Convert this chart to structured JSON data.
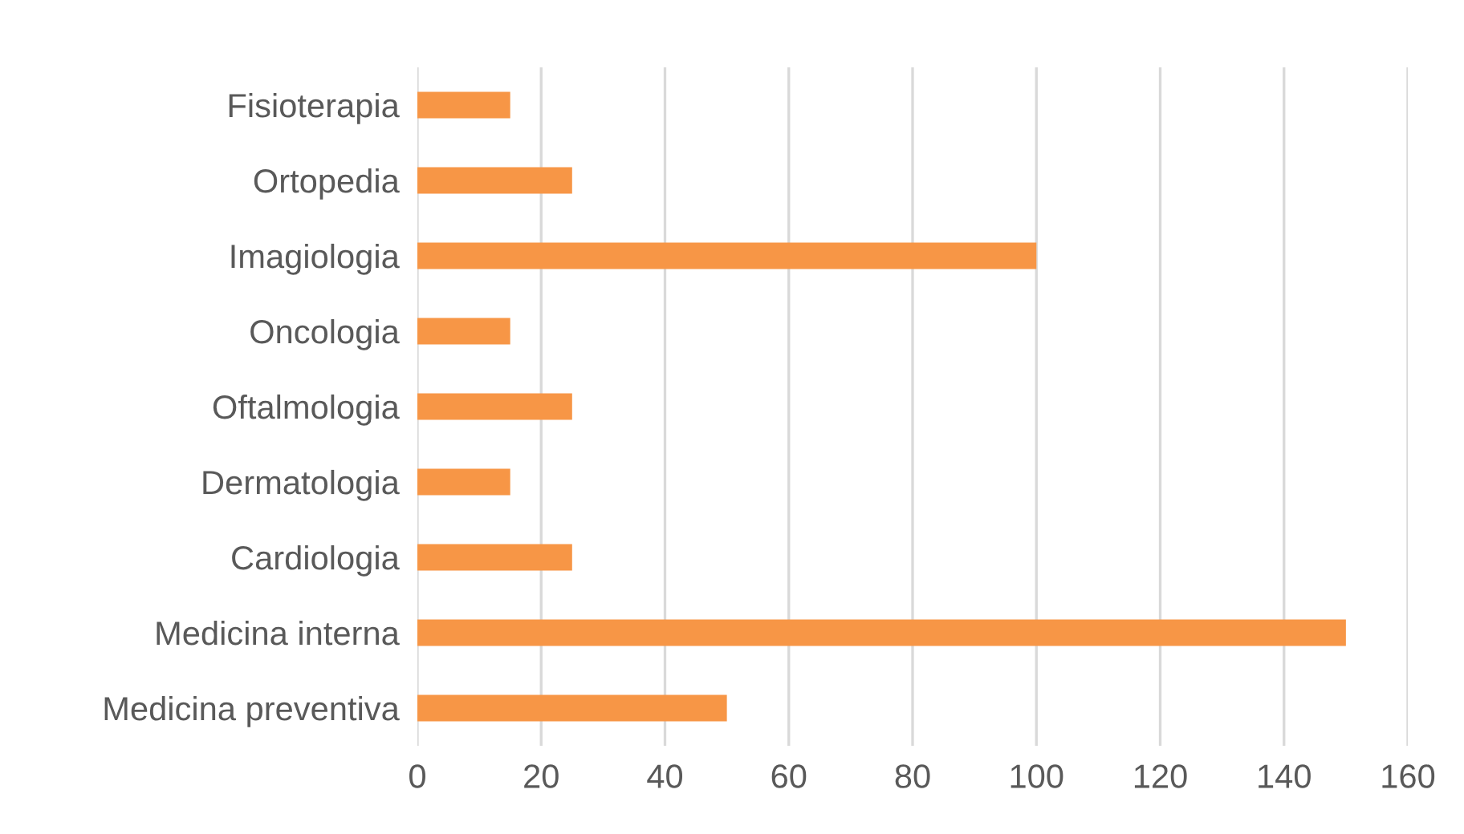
{
  "chart_data": {
    "type": "bar",
    "orientation": "horizontal",
    "categories": [
      "Fisioterapia",
      "Ortopedia",
      "Imagiologia",
      "Oncologia",
      "Oftalmologia",
      "Dermatologia",
      "Cardiologia",
      "Medicina interna",
      "Medicina preventiva"
    ],
    "values": [
      15,
      25,
      100,
      15,
      25,
      15,
      25,
      150,
      50
    ],
    "color": "#f79646",
    "xlim": [
      0,
      160
    ],
    "xticks": [
      0,
      20,
      40,
      60,
      80,
      100,
      120,
      140,
      160
    ],
    "grid": "x",
    "legend": false
  }
}
